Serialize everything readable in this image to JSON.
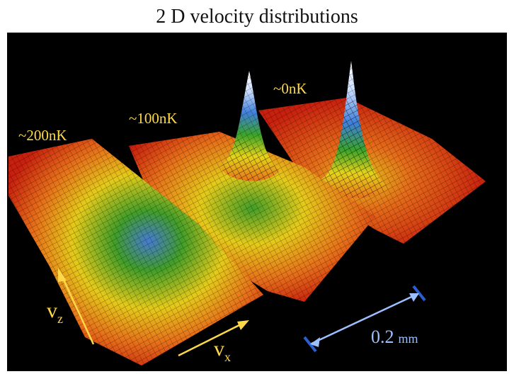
{
  "title": "2 D velocity distributions",
  "panels": [
    {
      "label": "~200nK"
    },
    {
      "label": "~100nK"
    },
    {
      "label": "~0nK"
    }
  ],
  "axes": {
    "vz_main": "v",
    "vz_sub": "z",
    "vx_main": "v",
    "vx_sub": "x"
  },
  "scale_bar": {
    "value": "0.2",
    "unit": "mm"
  },
  "colors": {
    "background": "#000000",
    "surface_low": "#c8200e",
    "surface_mid": "#e6d31a",
    "surface_green": "#3aa42a",
    "surface_peak": "#4a86e0",
    "label_yellow": "#ffd84a",
    "scale_blue": "#9cc0ff"
  }
}
